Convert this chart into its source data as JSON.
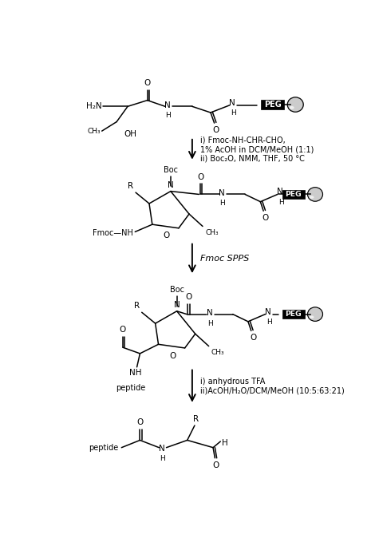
{
  "bg_color": "#ffffff",
  "fig_width": 4.7,
  "fig_height": 6.94,
  "dpi": 100,
  "reaction1_text": "i) Fmoc-NH-CHR-CHO,\n1% AcOH in DCM/MeOH (1:1)\nii) Boc₂O, NMM, THF, 50 °C",
  "reaction2_text": "Fmoc SPPS",
  "reaction3_text": "i) anhydrous TFA\nii)AcOH/H₂O/DCM/MeOH (10:5:63:21)"
}
